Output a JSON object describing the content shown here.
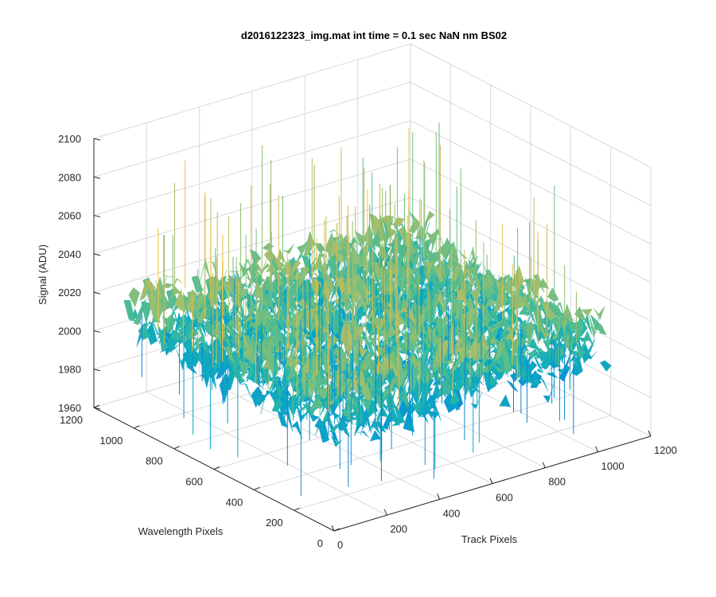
{
  "chart_data": {
    "type": "surface",
    "title": "d2016122323_img.mat int time = 0.1 sec  NaN nm BS02",
    "xlabel": "Track Pixels",
    "ylabel": "Wavelength Pixels",
    "zlabel": "Signal (ADU)",
    "xlim": [
      0,
      1200
    ],
    "ylim": [
      0,
      1200
    ],
    "zlim": [
      1960,
      2100
    ],
    "x_ticks": [
      "0",
      "200",
      "400",
      "600",
      "800",
      "1000",
      "1200"
    ],
    "y_ticks": [
      "0",
      "200",
      "400",
      "600",
      "800",
      "1000",
      "1200"
    ],
    "z_ticks": [
      "1960",
      "1980",
      "2000",
      "2020",
      "2040",
      "2060",
      "2080",
      "2100"
    ],
    "grid": true,
    "colormap": "parula",
    "data_extent": {
      "x": [
        0,
        1050
      ],
      "y": [
        0,
        1050
      ]
    },
    "mean_signal": 2015,
    "approx_signal_range": [
      1960,
      2090
    ]
  }
}
